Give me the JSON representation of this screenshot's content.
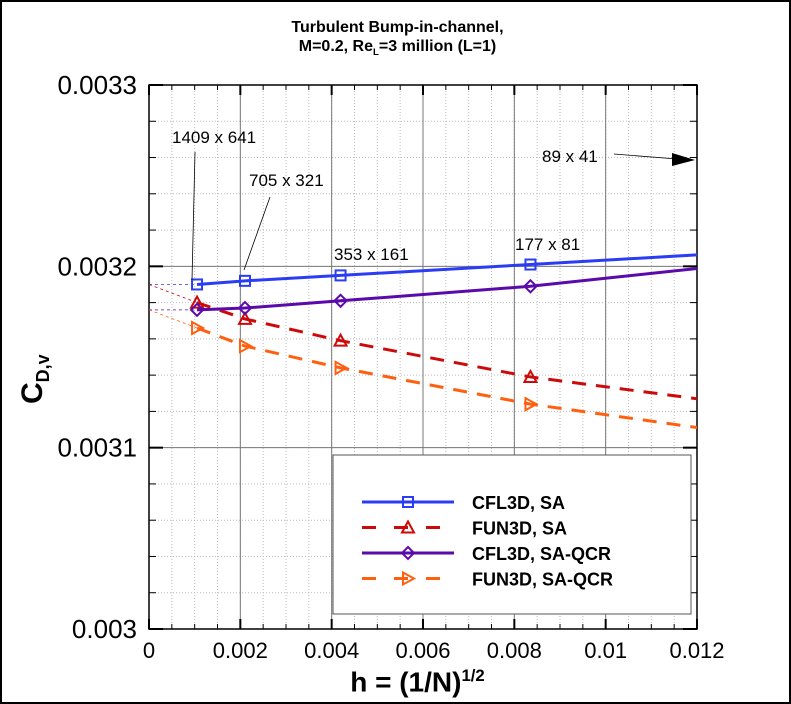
{
  "chart_data": {
    "type": "line",
    "title_line1": "Turbulent Bump-in-channel,",
    "title_line2_pre": "M=0.2, Re",
    "title_line2_sub": "L",
    "title_line2_post": "=3 million (L=1)",
    "xlabel": {
      "main": "h = (1/N)",
      "sup": "1/2"
    },
    "ylabel": {
      "main": "C",
      "sub": "D,v"
    },
    "xlim": [
      0,
      0.012
    ],
    "ylim": [
      0.003,
      0.0033
    ],
    "x_ticks": [
      "0",
      "0.002",
      "0.004",
      "0.006",
      "0.008",
      "0.01",
      "0.012"
    ],
    "y_ticks": [
      "0.003",
      "0.0031",
      "0.0032",
      "0.0033"
    ],
    "grid": true,
    "legend_position": "bottom-right",
    "x": [
      0.001052,
      0.002102,
      0.004195,
      0.008353,
      0.01655
    ],
    "series": [
      {
        "name": "CFL3D, SA",
        "color": "#2b3cf5",
        "dash": "solid",
        "marker": "square",
        "values": [
          0.00319,
          0.003192,
          0.003195,
          0.003201,
          0.003213
        ],
        "extrapolated_h0": 0.00319
      },
      {
        "name": "FUN3D, SA",
        "color": "#cc0a0a",
        "dash": "dashed",
        "marker": "triangle-up",
        "values": [
          0.00318,
          0.003171,
          0.003159,
          0.003139,
          0.003112
        ],
        "extrapolated_h0": 0.00319
      },
      {
        "name": "CFL3D, SA-QCR",
        "color": "#5a0aaa",
        "dash": "solid",
        "marker": "diamond",
        "values": [
          0.003176,
          0.003177,
          0.003181,
          0.003189,
          0.003211
        ],
        "extrapolated_h0": 0.003176
      },
      {
        "name": "FUN3D, SA-QCR",
        "color": "#ff6010",
        "dash": "dashed",
        "marker": "triangle-right",
        "values": [
          0.003166,
          0.003156,
          0.003144,
          0.003124,
          0.003095
        ],
        "extrapolated_h0": 0.003176
      }
    ],
    "annotations": [
      "1409 x 641",
      "705 x 321",
      "353 x 161",
      "177 x 81",
      "89 x 41"
    ]
  }
}
